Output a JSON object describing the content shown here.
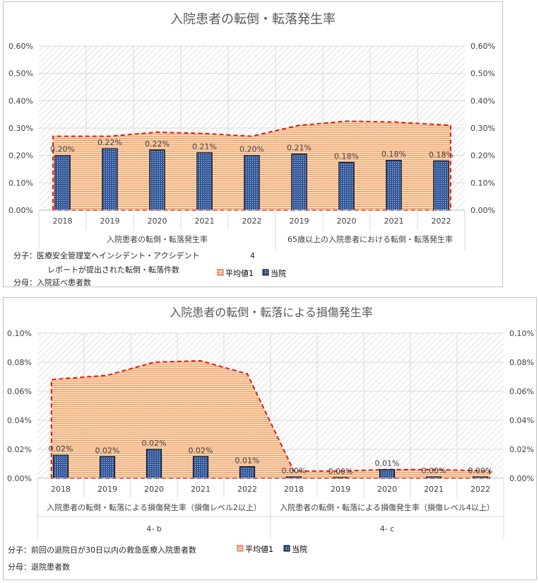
{
  "colors": {
    "average_line": "#e8150b",
    "average_fill": "#f3a76a",
    "bar_fill": "#2f5597",
    "bar_dots": "#dce6f2",
    "grid": "#d9d9d9",
    "plot_hatch": "#c8c8c8"
  },
  "chart_data": [
    {
      "type": "bar",
      "title": "入院患者の転倒・転落発生率",
      "ylim": [
        0,
        0.006
      ],
      "y_ticks": [
        "0.00%",
        "0.10%",
        "0.20%",
        "0.30%",
        "0.40%",
        "0.50%",
        "0.60%"
      ],
      "categories": [
        "2018",
        "2019",
        "2020",
        "2021",
        "2022",
        "2019",
        "2020",
        "2021",
        "2022"
      ],
      "groups": [
        "入院患者の転倒・転落発生率",
        "65歳以上の入院患者における転倒・転落発生率"
      ],
      "series": [
        {
          "name": "平均値1",
          "kind": "area",
          "values": [
            0.0027,
            0.0027,
            0.00285,
            0.0028,
            0.0027,
            0.0031,
            0.00325,
            0.00322,
            0.0031
          ]
        },
        {
          "name": "当院",
          "kind": "bar",
          "values": [
            0.002,
            0.00225,
            0.0022,
            0.0021,
            0.002,
            0.00205,
            0.00175,
            0.00182,
            0.0018
          ],
          "data_labels": [
            "0.20%",
            "0.22%",
            "0.22%",
            "0.21%",
            "0.20%",
            "0.21%",
            "0.18%",
            "0.18%",
            "0.18%"
          ]
        }
      ],
      "legend_position": "bottom",
      "notes": {
        "numerator_line1": "分子：医療安全管理室ヘインシデント・アクシデント",
        "numerator_line2": "レポートが提出された転倒・転落件数",
        "denominator": "分母：入院延べ患者数",
        "code": "4"
      }
    },
    {
      "type": "bar",
      "title": "入院患者の転倒・転落による損傷発生率",
      "ylim": [
        0,
        0.001
      ],
      "y_ticks": [
        "0.00%",
        "0.02%",
        "0.04%",
        "0.06%",
        "0.08%",
        "0.10%"
      ],
      "categories": [
        "2018",
        "2019",
        "2020",
        "2021",
        "2022",
        "2018",
        "2019",
        "2020",
        "2021",
        "2022"
      ],
      "groups": [
        "入院患者の転倒・転落による損傷発生率（損傷レベル2以上）",
        "入院患者の転倒・転落による損傷発生率（損傷レベル4以上）"
      ],
      "group_codes": [
        "4- b",
        "4- c"
      ],
      "series": [
        {
          "name": "平均値1",
          "kind": "area",
          "values": [
            0.00068,
            0.00071,
            0.0008,
            0.00081,
            0.00072,
            5e-05,
            5e-05,
            6e-05,
            6e-05,
            5e-05
          ]
        },
        {
          "name": "当院",
          "kind": "bar",
          "values": [
            0.00016,
            0.00015,
            0.0002,
            0.00015,
            8e-05,
            1e-05,
            0.0,
            6e-05,
            1e-05,
            1e-05
          ],
          "data_labels": [
            "0.02%",
            "0.02%",
            "0.02%",
            "0.02%",
            "0.01%",
            "0.00%",
            "0.00%",
            "0.01%",
            "0.00%",
            "0.00%"
          ]
        }
      ],
      "legend_position": "bottom",
      "notes": {
        "numerator": "分子：前回の退院日が30日以内の救急医療入院患者数",
        "denominator": "分母：退院患者数"
      }
    }
  ]
}
